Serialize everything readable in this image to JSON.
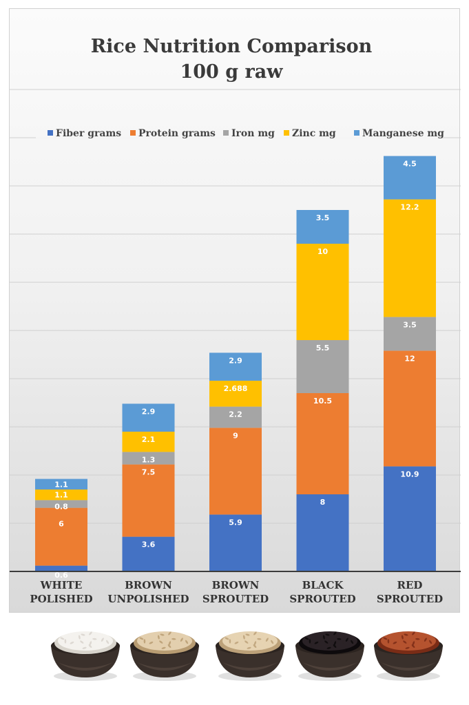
{
  "chart_data": {
    "type": "bar",
    "stacked": true,
    "title": "Rice Nutrition Comparison",
    "subtitle": "100 g raw",
    "categories": [
      {
        "line1": "WHITE",
        "line2": "POLISHED"
      },
      {
        "line1": "BROWN",
        "line2": "UNPOLISHED"
      },
      {
        "line1": "BROWN",
        "line2": "SPROUTED"
      },
      {
        "line1": "BLACK",
        "line2": "SPROUTED"
      },
      {
        "line1": "RED",
        "line2": "SPROUTED"
      }
    ],
    "series": [
      {
        "name": "Fiber grams",
        "color": "#4472C4",
        "values": [
          0.6,
          3.6,
          5.9,
          8,
          10.9
        ],
        "labels": [
          "0.6",
          "3.6",
          "5.9",
          "8",
          "10.9"
        ]
      },
      {
        "name": "Protein grams",
        "color": "#ED7D31",
        "values": [
          6,
          7.5,
          9,
          10.5,
          12
        ],
        "labels": [
          "6",
          "7.5",
          "9",
          "10.5",
          "12"
        ]
      },
      {
        "name": "Iron mg",
        "color": "#A5A5A5",
        "values": [
          0.8,
          1.3,
          2.2,
          5.5,
          3.5
        ],
        "labels": [
          "0.8",
          "1.3",
          "2.2",
          "5.5",
          "3.5"
        ]
      },
      {
        "name": "Zinc mg",
        "color": "#FFC000",
        "values": [
          1.1,
          2.1,
          2.688,
          10,
          12.2
        ],
        "labels": [
          "1.1",
          "2.1",
          "2.688",
          "10",
          "12.2"
        ]
      },
      {
        "name": "Manganese mg",
        "color": "#5B9BD5",
        "values": [
          1.1,
          2.9,
          2.9,
          3.5,
          4.5
        ],
        "labels": [
          "1.1",
          "2.9",
          "2.9",
          "3.5",
          "4.5"
        ]
      }
    ],
    "ylim": [
      0,
      50
    ],
    "grid": true,
    "legend_position": "top",
    "xlabel": "",
    "ylabel": ""
  },
  "bowls": [
    {
      "icon": "white-rice-bowl-icon",
      "grain": "#f4f2ee",
      "grain_dark": "#d8d4cc"
    },
    {
      "icon": "brown-rice-bowl-icon",
      "grain": "#e3cfae",
      "grain_dark": "#b89c72"
    },
    {
      "icon": "sprouted-brown-rice-bowl-icon",
      "grain": "#e6d3b2",
      "grain_dark": "#bca179"
    },
    {
      "icon": "black-rice-bowl-icon",
      "grain": "#2a2226",
      "grain_dark": "#0d0a0c"
    },
    {
      "icon": "red-rice-bowl-icon",
      "grain": "#b5532f",
      "grain_dark": "#7a2c16"
    }
  ]
}
